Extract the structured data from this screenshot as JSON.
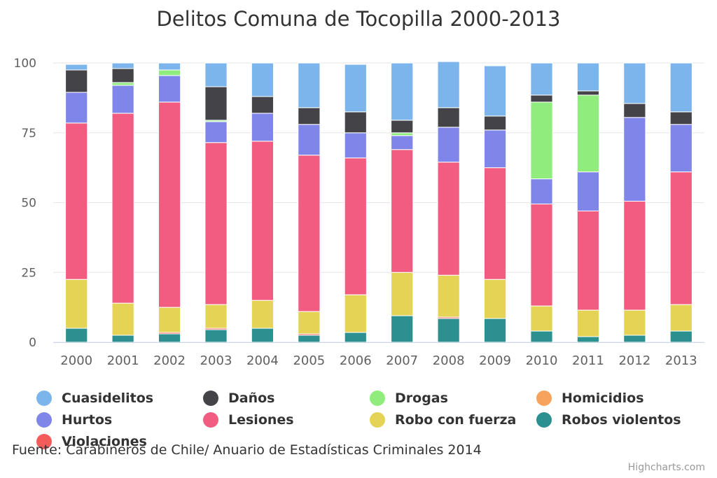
{
  "chart_data": {
    "type": "bar",
    "stacked": true,
    "title": "Delitos Comuna de Tocopilla 2000-2013",
    "categories": [
      "2000",
      "2001",
      "2002",
      "2003",
      "2004",
      "2005",
      "2006",
      "2007",
      "2008",
      "2009",
      "2010",
      "2011",
      "2012",
      "2013"
    ],
    "ylim": [
      0,
      100
    ],
    "yticks": [
      "0",
      "25",
      "50",
      "75",
      "100"
    ],
    "grid": true,
    "legend_position": "bottom",
    "series": [
      {
        "name": "Robos violentos",
        "color": "#2b908f",
        "values": [
          5.0,
          2.5,
          3.0,
          4.5,
          5.0,
          2.5,
          3.5,
          9.5,
          8.5,
          8.5,
          4.0,
          2.0,
          2.5,
          4.0
        ]
      },
      {
        "name": "Violaciones",
        "color": "#f45b5b",
        "values": [
          0,
          0,
          0.5,
          0.5,
          0,
          0.5,
          0,
          0,
          0.5,
          0,
          0,
          0,
          0,
          0
        ]
      },
      {
        "name": "Homicidios",
        "color": "#f7a35c",
        "values": [
          0,
          0,
          0,
          0,
          0,
          0,
          0,
          0,
          0,
          0,
          0,
          0,
          0,
          0
        ]
      },
      {
        "name": "Robo con fuerza",
        "color": "#e4d354",
        "values": [
          17.5,
          11.5,
          9.0,
          8.5,
          10.0,
          8.0,
          13.5,
          15.5,
          15.0,
          14.0,
          9.0,
          9.5,
          9.0,
          9.5
        ]
      },
      {
        "name": "Lesiones",
        "color": "#f15c80",
        "values": [
          56.0,
          68.0,
          73.5,
          58.0,
          57.0,
          56.0,
          49.0,
          44.0,
          40.5,
          40.0,
          36.5,
          35.5,
          39.0,
          47.5
        ]
      },
      {
        "name": "Hurtos",
        "color": "#8085e9",
        "values": [
          11.0,
          10.0,
          9.5,
          7.5,
          10.0,
          11.0,
          9.0,
          5.0,
          12.5,
          13.5,
          9.0,
          14.0,
          30.0,
          17.0
        ]
      },
      {
        "name": "Drogas",
        "color": "#90ed7d",
        "values": [
          0,
          1.0,
          2.0,
          0.5,
          0,
          0,
          0,
          1.0,
          0,
          0,
          27.5,
          27.5,
          0,
          0
        ]
      },
      {
        "name": "Daños",
        "color": "#434348",
        "values": [
          8.0,
          5.0,
          0,
          12.0,
          6.0,
          6.0,
          7.5,
          4.5,
          7.0,
          5.0,
          2.5,
          1.5,
          5.0,
          4.5
        ]
      },
      {
        "name": "Cuasidelitos",
        "color": "#7cb5ec",
        "values": [
          2.0,
          2.0,
          2.5,
          8.5,
          12.0,
          16.0,
          17.0,
          20.5,
          16.5,
          18.0,
          11.5,
          10.0,
          14.5,
          17.5
        ]
      }
    ]
  },
  "legend": {
    "items": [
      {
        "label": "Cuasidelitos",
        "color": "#7cb5ec"
      },
      {
        "label": "Daños",
        "color": "#434348"
      },
      {
        "label": "Drogas",
        "color": "#90ed7d"
      },
      {
        "label": "Homicidios",
        "color": "#f7a35c"
      },
      {
        "label": "Hurtos",
        "color": "#8085e9"
      },
      {
        "label": "Lesiones",
        "color": "#f15c80"
      },
      {
        "label": "Robo con fuerza",
        "color": "#e4d354"
      },
      {
        "label": "Robos violentos",
        "color": "#2b908f"
      },
      {
        "label": "Violaciones",
        "color": "#f45b5b"
      }
    ]
  },
  "source_note": "Fuente: Carabineros de Chile/ Anuario de Estadísticas Criminales 2014",
  "credits": "Highcharts.com"
}
